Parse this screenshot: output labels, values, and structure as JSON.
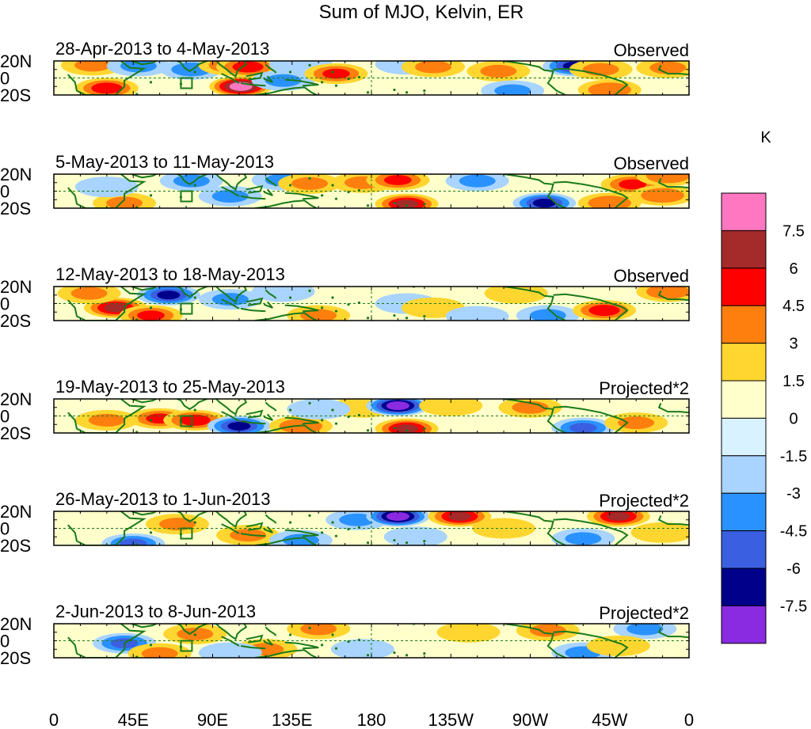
{
  "chart_data": {
    "type": "heatmap",
    "title": "Sum of MJO, Kelvin, ER",
    "units_label": "K",
    "x_ticks": [
      "0",
      "45E",
      "90E",
      "135E",
      "180",
      "135W",
      "90W",
      "45W",
      "0"
    ],
    "x_tick_lon": [
      0,
      45,
      90,
      135,
      180,
      225,
      270,
      315,
      360
    ],
    "y_ticks": [
      "20N",
      "0",
      "20S"
    ],
    "y_tick_lat": [
      20,
      0,
      -20
    ],
    "xlim": [
      0,
      360
    ],
    "ylim": [
      -20,
      20
    ],
    "colorbar": {
      "levels": [
        "7.5",
        "6",
        "4.5",
        "3",
        "1.5",
        "0",
        "-1.5",
        "-3",
        "-4.5",
        "-6",
        "-7.5"
      ],
      "colors": [
        "#ff77c0",
        "#a52a2a",
        "#ff0000",
        "#ff7f0e",
        "#ffd630",
        "#ffffcc",
        "#d9f2ff",
        "#a8d4ff",
        "#2a92ff",
        "#3a5fe0",
        "#00008b",
        "#8a2be2"
      ]
    },
    "panels": [
      {
        "period": "28-Apr-2013 to 4-May-2013",
        "kind": "Observed",
        "anomalies": [
          {
            "lon": 30,
            "lat": -12,
            "value": 5
          },
          {
            "lon": 22,
            "lat": 15,
            "value": 3
          },
          {
            "lon": 48,
            "lat": 14,
            "value": -3
          },
          {
            "lon": 78,
            "lat": 10,
            "value": -3.5
          },
          {
            "lon": 100,
            "lat": 15,
            "value": 4
          },
          {
            "lon": 110,
            "lat": 13,
            "value": 5
          },
          {
            "lon": 106,
            "lat": -10,
            "value": 8
          },
          {
            "lon": 130,
            "lat": -3,
            "value": -3
          },
          {
            "lon": 140,
            "lat": 16,
            "value": -2
          },
          {
            "lon": 160,
            "lat": 5,
            "value": 4.5
          },
          {
            "lon": 200,
            "lat": 16,
            "value": -2
          },
          {
            "lon": 215,
            "lat": 13,
            "value": 3
          },
          {
            "lon": 252,
            "lat": 8,
            "value": 3
          },
          {
            "lon": 295,
            "lat": 14,
            "value": -6
          },
          {
            "lon": 310,
            "lat": 10,
            "value": 3
          },
          {
            "lon": 315,
            "lat": -14,
            "value": 4
          },
          {
            "lon": 348,
            "lat": 12,
            "value": 3
          },
          {
            "lon": 260,
            "lat": -15,
            "value": -3
          }
        ]
      },
      {
        "period": "5-May-2013 to 11-May-2013",
        "kind": "Observed",
        "anomalies": [
          {
            "lon": 40,
            "lat": -14,
            "value": 3
          },
          {
            "lon": 78,
            "lat": 12,
            "value": -3
          },
          {
            "lon": 100,
            "lat": -6,
            "value": -3
          },
          {
            "lon": 130,
            "lat": 13,
            "value": -3
          },
          {
            "lon": 145,
            "lat": 9,
            "value": 3
          },
          {
            "lon": 175,
            "lat": 10,
            "value": 3
          },
          {
            "lon": 195,
            "lat": 13,
            "value": 4.5
          },
          {
            "lon": 200,
            "lat": -15,
            "value": 6
          },
          {
            "lon": 240,
            "lat": 12,
            "value": -3
          },
          {
            "lon": 278,
            "lat": -14,
            "value": -6
          },
          {
            "lon": 328,
            "lat": 8,
            "value": 4.5
          },
          {
            "lon": 348,
            "lat": 18,
            "value": 4
          },
          {
            "lon": 345,
            "lat": -5,
            "value": 4
          },
          {
            "lon": 315,
            "lat": -14,
            "value": 4
          },
          {
            "lon": 30,
            "lat": 5,
            "value": -1.5
          }
        ]
      },
      {
        "period": "12-May-2013 to 18-May-2013",
        "kind": "Observed",
        "anomalies": [
          {
            "lon": 35,
            "lat": -5,
            "value": 6
          },
          {
            "lon": 55,
            "lat": -14,
            "value": 4.5
          },
          {
            "lon": 65,
            "lat": 10,
            "value": -6
          },
          {
            "lon": 20,
            "lat": 12,
            "value": 3
          },
          {
            "lon": 100,
            "lat": 5,
            "value": -3
          },
          {
            "lon": 150,
            "lat": -14,
            "value": 3
          },
          {
            "lon": 130,
            "lat": 14,
            "value": -1.5
          },
          {
            "lon": 200,
            "lat": 0,
            "value": -2
          },
          {
            "lon": 215,
            "lat": -5,
            "value": 2
          },
          {
            "lon": 262,
            "lat": 12,
            "value": 2
          },
          {
            "lon": 280,
            "lat": -14,
            "value": -3
          },
          {
            "lon": 312,
            "lat": -8,
            "value": 5
          },
          {
            "lon": 348,
            "lat": 14,
            "value": 4
          },
          {
            "lon": 240,
            "lat": -15,
            "value": -2
          }
        ]
      },
      {
        "period": "19-May-2013 to 25-May-2013",
        "kind": "Projected*2",
        "anomalies": [
          {
            "lon": 60,
            "lat": -3,
            "value": 4.5
          },
          {
            "lon": 80,
            "lat": -5,
            "value": 5
          },
          {
            "lon": 30,
            "lat": -5,
            "value": 3
          },
          {
            "lon": 105,
            "lat": -12,
            "value": -6
          },
          {
            "lon": 140,
            "lat": -12,
            "value": 4
          },
          {
            "lon": 175,
            "lat": 10,
            "value": 2
          },
          {
            "lon": 195,
            "lat": 12,
            "value": -8
          },
          {
            "lon": 200,
            "lat": -15,
            "value": 6
          },
          {
            "lon": 225,
            "lat": 12,
            "value": 2
          },
          {
            "lon": 270,
            "lat": 10,
            "value": 3
          },
          {
            "lon": 300,
            "lat": -14,
            "value": -4.5
          },
          {
            "lon": 330,
            "lat": -8,
            "value": 3
          },
          {
            "lon": 150,
            "lat": 8,
            "value": -2
          }
        ]
      },
      {
        "period": "26-May-2013 to 1-Jun-2013",
        "kind": "Projected*2",
        "anomalies": [
          {
            "lon": 70,
            "lat": 5,
            "value": 3
          },
          {
            "lon": 45,
            "lat": -18,
            "value": -4.5
          },
          {
            "lon": 110,
            "lat": -8,
            "value": 3
          },
          {
            "lon": 140,
            "lat": -14,
            "value": -3
          },
          {
            "lon": 172,
            "lat": 10,
            "value": -3
          },
          {
            "lon": 195,
            "lat": 14,
            "value": -8
          },
          {
            "lon": 230,
            "lat": 14,
            "value": 6
          },
          {
            "lon": 205,
            "lat": -10,
            "value": -2
          },
          {
            "lon": 255,
            "lat": 0,
            "value": 2
          },
          {
            "lon": 300,
            "lat": -12,
            "value": -3
          },
          {
            "lon": 320,
            "lat": 14,
            "value": 6
          },
          {
            "lon": 345,
            "lat": -5,
            "value": 2
          }
        ]
      },
      {
        "period": "2-Jun-2013 to 8-Jun-2013",
        "kind": "Projected*2",
        "anomalies": [
          {
            "lon": 40,
            "lat": -3,
            "value": -4.5
          },
          {
            "lon": 60,
            "lat": -15,
            "value": 3
          },
          {
            "lon": 80,
            "lat": 8,
            "value": 3
          },
          {
            "lon": 120,
            "lat": -10,
            "value": 3
          },
          {
            "lon": 100,
            "lat": -14,
            "value": -1.5
          },
          {
            "lon": 150,
            "lat": 14,
            "value": 3
          },
          {
            "lon": 175,
            "lat": -10,
            "value": -2
          },
          {
            "lon": 235,
            "lat": 10,
            "value": 2
          },
          {
            "lon": 280,
            "lat": 12,
            "value": 3
          },
          {
            "lon": 300,
            "lat": -14,
            "value": -3
          },
          {
            "lon": 335,
            "lat": 14,
            "value": -3
          },
          {
            "lon": 320,
            "lat": -6,
            "value": 2
          }
        ]
      }
    ]
  }
}
